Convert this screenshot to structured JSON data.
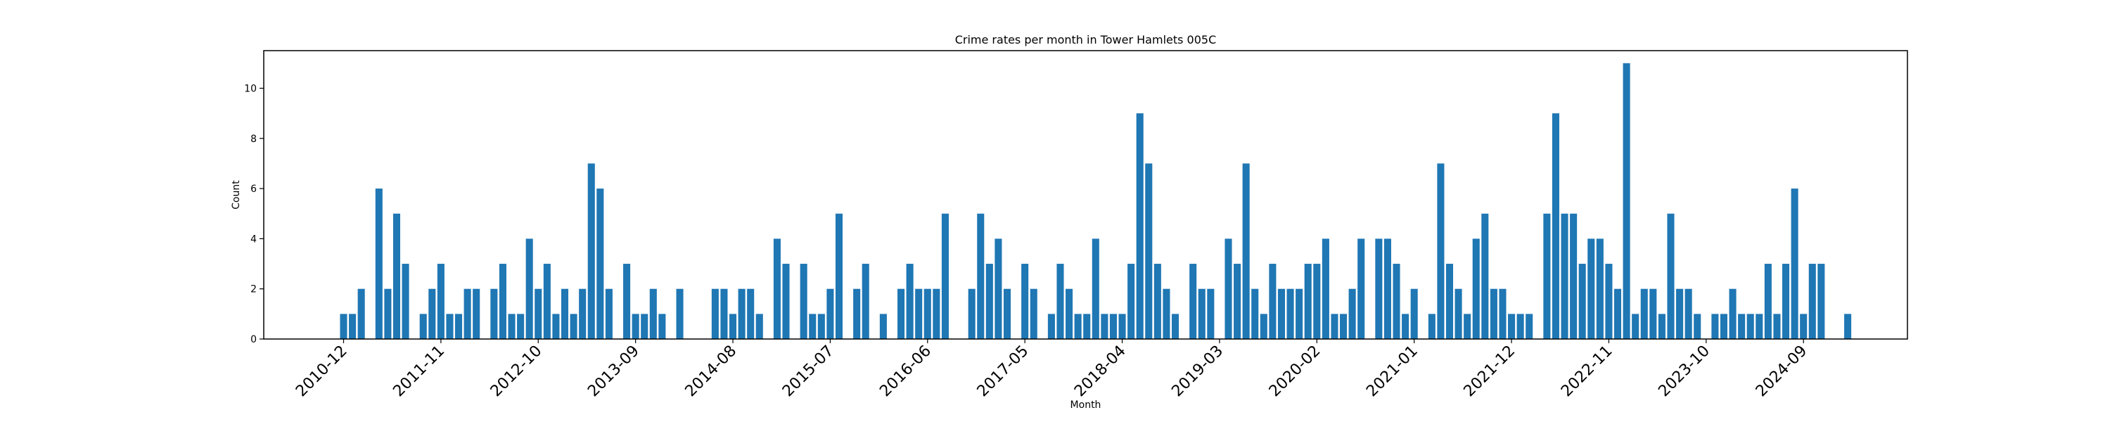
{
  "chart_data": {
    "type": "bar",
    "title": "Crime rates per month in Tower Hamlets 005C",
    "xlabel": "Month",
    "ylabel": "Count",
    "ylim": [
      0,
      11.5
    ],
    "yticks": [
      0,
      2,
      4,
      6,
      8,
      10
    ],
    "bar_color": "#1f77b4",
    "grid": false,
    "xtick_labels": [
      "2010-12",
      "2011-11",
      "2012-10",
      "2013-09",
      "2014-08",
      "2015-07",
      "2016-06",
      "2017-05",
      "2018-04",
      "2019-03",
      "2020-02",
      "2021-01",
      "2021-12",
      "2022-11",
      "2023-10",
      "2024-09"
    ],
    "categories": [
      "2010-12",
      "2011-01",
      "2011-02",
      "2011-03",
      "2011-04",
      "2011-05",
      "2011-06",
      "2011-07",
      "2011-08",
      "2011-09",
      "2011-10",
      "2011-11",
      "2011-12",
      "2012-01",
      "2012-02",
      "2012-03",
      "2012-04",
      "2012-05",
      "2012-06",
      "2012-07",
      "2012-08",
      "2012-09",
      "2012-10",
      "2012-11",
      "2012-12",
      "2013-01",
      "2013-02",
      "2013-03",
      "2013-04",
      "2013-05",
      "2013-06",
      "2013-07",
      "2013-08",
      "2013-09",
      "2013-10",
      "2013-11",
      "2013-12",
      "2014-01",
      "2014-02",
      "2014-03",
      "2014-04",
      "2014-05",
      "2014-06",
      "2014-07",
      "2014-08",
      "2014-09",
      "2014-10",
      "2014-11",
      "2014-12",
      "2015-01",
      "2015-02",
      "2015-03",
      "2015-04",
      "2015-05",
      "2015-06",
      "2015-07",
      "2015-08",
      "2015-09",
      "2015-10",
      "2015-11",
      "2015-12",
      "2016-01",
      "2016-02",
      "2016-03",
      "2016-04",
      "2016-05",
      "2016-06",
      "2016-07",
      "2016-08",
      "2016-09",
      "2016-10",
      "2016-11",
      "2016-12",
      "2017-01",
      "2017-02",
      "2017-03",
      "2017-04",
      "2017-05",
      "2017-06",
      "2017-07",
      "2017-08",
      "2017-09",
      "2017-10",
      "2017-11",
      "2017-12",
      "2018-01",
      "2018-02",
      "2018-03",
      "2018-04",
      "2018-05",
      "2018-06",
      "2018-07",
      "2018-08",
      "2018-09",
      "2018-10",
      "2018-11",
      "2018-12",
      "2019-01",
      "2019-02",
      "2019-03",
      "2019-04",
      "2019-05",
      "2019-06",
      "2019-07",
      "2019-08",
      "2019-09",
      "2019-10",
      "2019-11",
      "2019-12",
      "2020-01",
      "2020-02",
      "2020-03",
      "2020-04",
      "2020-05",
      "2020-06",
      "2020-07",
      "2020-08",
      "2020-09",
      "2020-10",
      "2020-11",
      "2020-12",
      "2021-01",
      "2021-02",
      "2021-03",
      "2021-04",
      "2021-05",
      "2021-06",
      "2021-07",
      "2021-08",
      "2021-09",
      "2021-10",
      "2021-11",
      "2021-12",
      "2022-01",
      "2022-02",
      "2022-03",
      "2022-04",
      "2022-05",
      "2022-06",
      "2022-07",
      "2022-08",
      "2022-09",
      "2022-10",
      "2022-11",
      "2022-12",
      "2023-01",
      "2023-02",
      "2023-03",
      "2023-04",
      "2023-05",
      "2023-06",
      "2023-07",
      "2023-08",
      "2023-09",
      "2023-10",
      "2023-11",
      "2023-12",
      "2024-01",
      "2024-02",
      "2024-03",
      "2024-04",
      "2024-05",
      "2024-06",
      "2024-07",
      "2024-08",
      "2024-09",
      "2024-10",
      "2024-11",
      "2024-12",
      "2025-01",
      "2025-02"
    ],
    "values": [
      1,
      1,
      2,
      0,
      6,
      2,
      5,
      3,
      0,
      1,
      2,
      3,
      1,
      1,
      2,
      2,
      0,
      2,
      3,
      1,
      1,
      4,
      2,
      3,
      1,
      2,
      1,
      2,
      7,
      6,
      2,
      0,
      3,
      1,
      1,
      2,
      1,
      0,
      2,
      0,
      0,
      0,
      2,
      2,
      1,
      2,
      2,
      1,
      0,
      4,
      3,
      0,
      3,
      1,
      1,
      2,
      5,
      0,
      2,
      3,
      0,
      1,
      0,
      2,
      3,
      2,
      2,
      2,
      5,
      0,
      0,
      2,
      5,
      3,
      4,
      2,
      0,
      3,
      2,
      0,
      1,
      3,
      2,
      1,
      1,
      4,
      1,
      1,
      1,
      3,
      9,
      7,
      3,
      2,
      1,
      0,
      3,
      2,
      2,
      0,
      4,
      3,
      7,
      2,
      1,
      3,
      2,
      2,
      2,
      3,
      3,
      4,
      1,
      1,
      2,
      4,
      0,
      4,
      4,
      3,
      1,
      2,
      0,
      1,
      7,
      3,
      2,
      1,
      4,
      5,
      2,
      2,
      1,
      1,
      1,
      0,
      5,
      9,
      5,
      5,
      3,
      4,
      4,
      3,
      2,
      11,
      1,
      2,
      2,
      1,
      5,
      2,
      2,
      1,
      0,
      1,
      1,
      2,
      1,
      1,
      1,
      3,
      1,
      3,
      6,
      1,
      3,
      3,
      0,
      0,
      1
    ]
  }
}
